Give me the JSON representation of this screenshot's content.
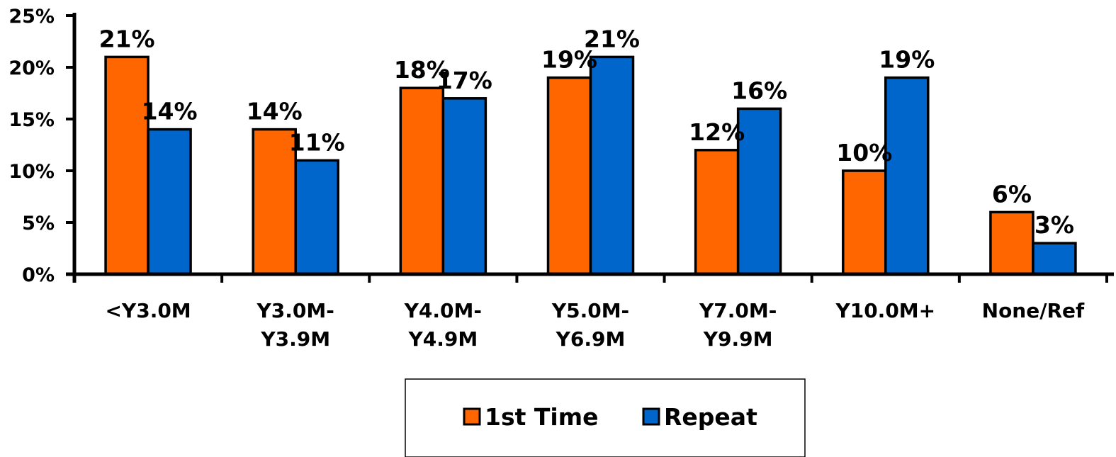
{
  "chart_data": {
    "type": "bar",
    "categories": [
      [
        "<Y3.0M"
      ],
      [
        "Y3.0M-",
        "Y3.9M"
      ],
      [
        "Y4.0M-",
        "Y4.9M"
      ],
      [
        "Y5.0M-",
        "Y6.9M"
      ],
      [
        "Y7.0M-",
        "Y9.9M"
      ],
      [
        "Y10.0M+"
      ],
      [
        "None/Ref"
      ]
    ],
    "series": [
      {
        "name": "1st Time",
        "color": "#ff6600",
        "values": [
          21,
          14,
          18,
          19,
          12,
          10,
          6
        ],
        "labels": [
          "21%",
          "14%",
          "18%",
          "19%",
          "12%",
          "10%",
          "6%"
        ]
      },
      {
        "name": "Repeat",
        "color": "#0066cc",
        "values": [
          14,
          11,
          17,
          21,
          16,
          19,
          3
        ],
        "labels": [
          "14%",
          "11%",
          "17%",
          "21%",
          "16%",
          "19%",
          "3%"
        ]
      }
    ],
    "yticks": [
      {
        "value": 0,
        "label": "0%"
      },
      {
        "value": 5,
        "label": "5%"
      },
      {
        "value": 10,
        "label": "10%"
      },
      {
        "value": 15,
        "label": "15%"
      },
      {
        "value": 20,
        "label": "20%"
      },
      {
        "value": 25,
        "label": "25%"
      }
    ],
    "ylim": [
      0,
      25
    ],
    "grid": false,
    "legend": "bottom-center",
    "title": "",
    "xlabel": "",
    "ylabel": ""
  }
}
